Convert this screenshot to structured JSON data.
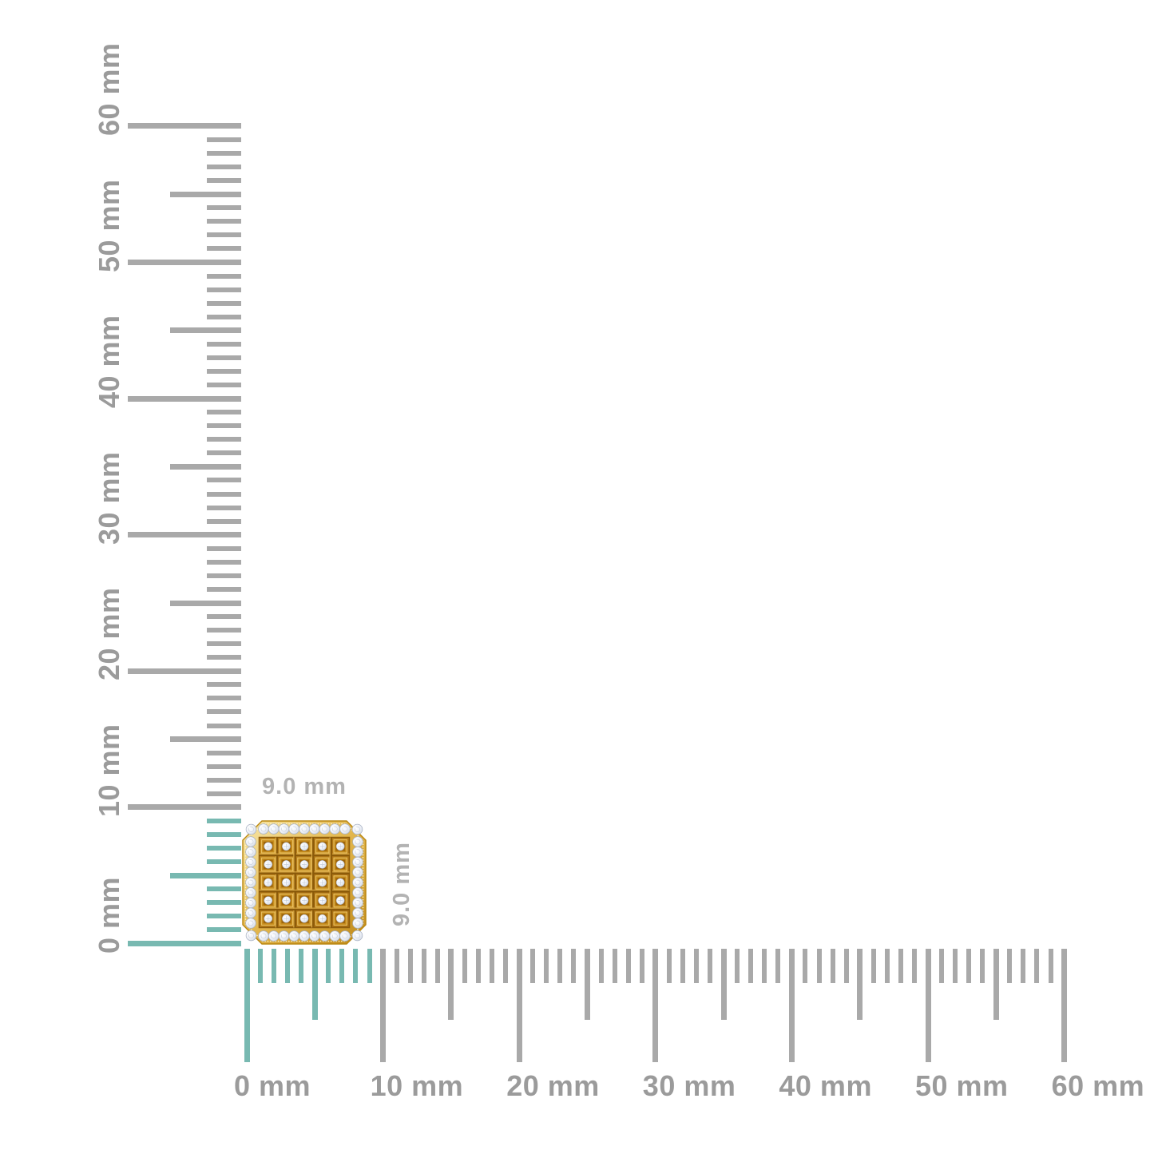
{
  "measurement": {
    "width_label": "9.0 mm",
    "height_label": "9.0 mm",
    "width_mm": 9.0,
    "height_mm": 9.0
  },
  "rulers": {
    "vertical": {
      "orientation": "vertical",
      "unit": "mm",
      "min_mm": 0,
      "max_mm": 60,
      "minor_step_mm": 1,
      "medium_step_mm": 5,
      "major_step_mm": 10,
      "major_labels": [
        "0 mm",
        "10 mm",
        "20 mm",
        "30 mm",
        "40 mm",
        "50 mm",
        "60 mm"
      ],
      "highlighted_range_mm": [
        0,
        9
      ]
    },
    "horizontal": {
      "orientation": "horizontal",
      "unit": "mm",
      "min_mm": 0,
      "max_mm": 60,
      "minor_step_mm": 1,
      "medium_step_mm": 5,
      "major_step_mm": 10,
      "major_labels": [
        "0 mm",
        "10 mm",
        "20 mm",
        "30 mm",
        "40 mm",
        "50 mm",
        "60 mm"
      ],
      "highlighted_range_mm": [
        0,
        9
      ]
    }
  },
  "colors": {
    "background": "#ffffff",
    "tick_gray": "#a9a9a9",
    "ruler_label_gray": "#9b9b9b",
    "measure_label_gray": "#b3b3b3",
    "highlight_teal": "#78b9b1",
    "gold_light": "#f8e7a8",
    "gold_mid": "#e5ba52",
    "gold_dark": "#a76c10",
    "diamond_white": "#eef1f7",
    "diamond_shadow": "#c9d1de"
  }
}
